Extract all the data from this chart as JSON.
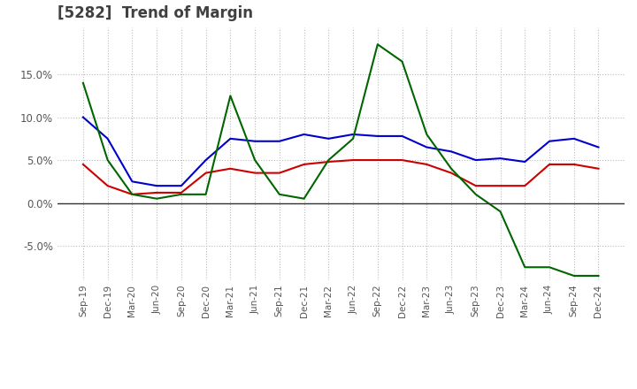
{
  "title": "[5282]  Trend of Margin",
  "title_color": "#404040",
  "background_color": "#ffffff",
  "grid_color": "#bbbbbb",
  "x_labels": [
    "Sep-19",
    "Dec-19",
    "Mar-20",
    "Jun-20",
    "Sep-20",
    "Dec-20",
    "Mar-21",
    "Jun-21",
    "Sep-21",
    "Dec-21",
    "Mar-22",
    "Jun-22",
    "Sep-22",
    "Dec-22",
    "Mar-23",
    "Jun-23",
    "Sep-23",
    "Dec-23",
    "Mar-24",
    "Jun-24",
    "Sep-24",
    "Dec-24"
  ],
  "ordinary_income": [
    10.0,
    7.5,
    2.5,
    2.0,
    2.0,
    5.0,
    7.5,
    7.2,
    7.2,
    8.0,
    7.5,
    8.0,
    7.8,
    7.8,
    6.5,
    6.0,
    5.0,
    5.2,
    4.8,
    7.2,
    7.5,
    6.5
  ],
  "net_income": [
    4.5,
    2.0,
    1.0,
    1.2,
    1.2,
    3.5,
    4.0,
    3.5,
    3.5,
    4.5,
    4.8,
    5.0,
    5.0,
    5.0,
    4.5,
    3.5,
    2.0,
    2.0,
    2.0,
    4.5,
    4.5,
    4.0
  ],
  "operating_cashflow": [
    14.0,
    5.0,
    1.0,
    0.5,
    1.0,
    1.0,
    12.5,
    5.0,
    1.0,
    0.5,
    5.0,
    7.5,
    18.5,
    16.5,
    8.0,
    4.0,
    1.0,
    -1.0,
    -7.5,
    -7.5,
    -8.5,
    -8.5
  ],
  "ordinary_income_color": "#0000cc",
  "net_income_color": "#cc0000",
  "operating_cashflow_color": "#006600",
  "ylim": [
    -9.0,
    20.5
  ],
  "yticks": [
    -5.0,
    0.0,
    5.0,
    10.0,
    15.0
  ]
}
